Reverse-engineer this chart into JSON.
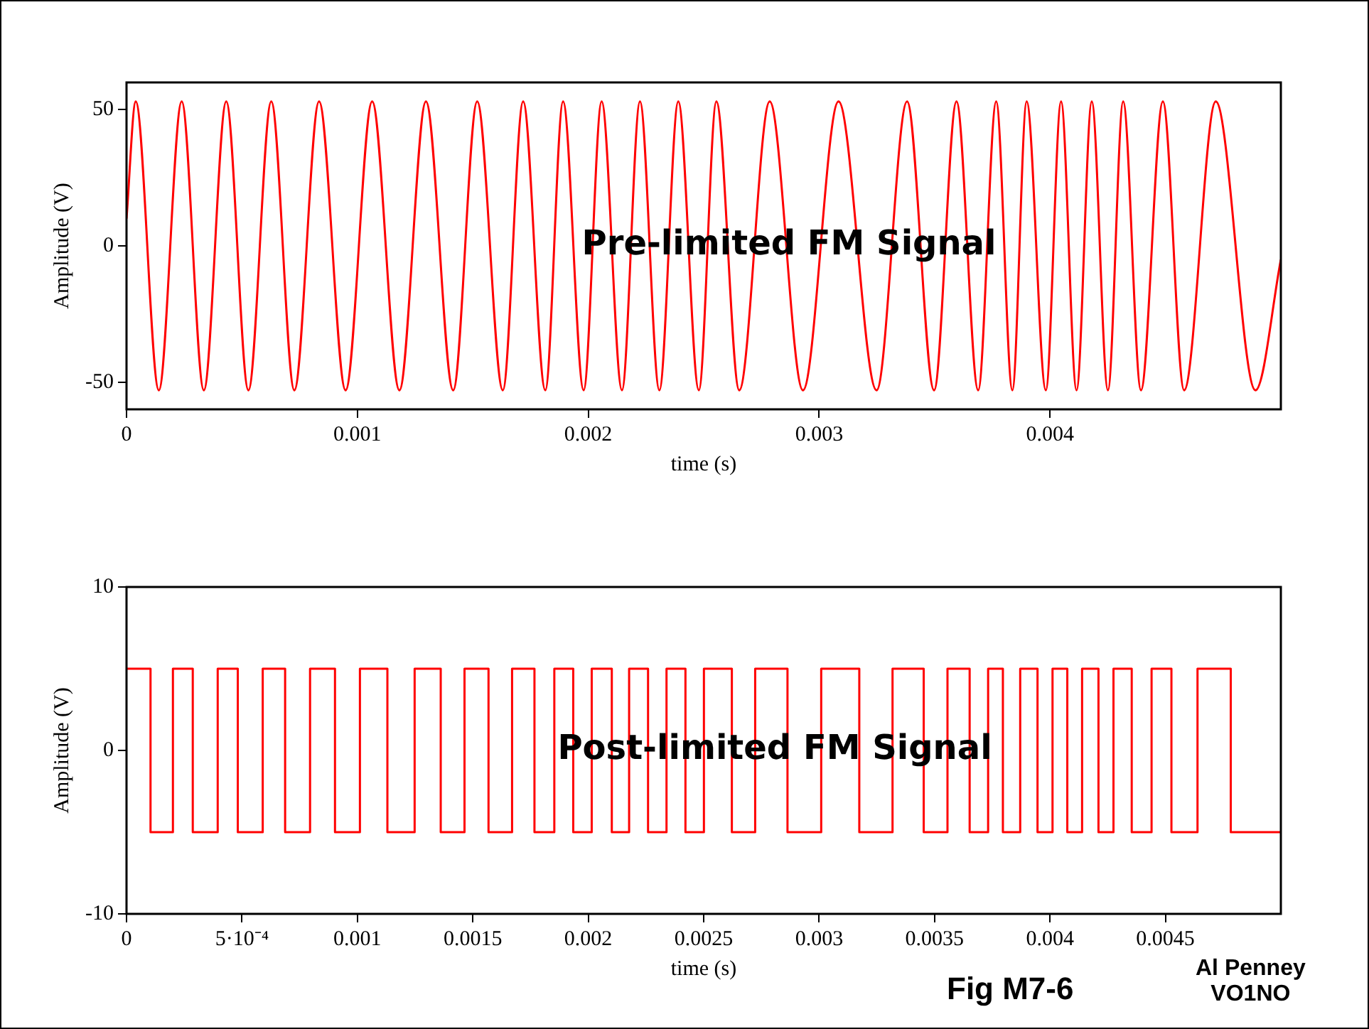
{
  "chart_data": [
    {
      "type": "line",
      "ylabel": "Amplitude (V)",
      "xlabel": "time (s)",
      "marker": "none",
      "grid": false,
      "annotations": [
        "Pre-limited FM Signal"
      ],
      "xlim": [
        0,
        0.005
      ],
      "ylim": [
        -60,
        60
      ],
      "xticks": [
        0,
        0.001,
        0.002,
        0.003,
        0.004
      ],
      "yticks": [
        -50,
        0,
        50
      ],
      "x": [
        0,
        4e-05,
        0.00014,
        0.000239,
        0.000335,
        0.000432,
        0.000528,
        0.000627,
        0.000727,
        0.000834,
        0.000949,
        0.001064,
        0.001182,
        0.001297,
        0.001415,
        0.001519,
        0.00163,
        0.001718,
        0.001814,
        0.001891,
        0.00198,
        0.002058,
        0.002146,
        0.002224,
        0.002308,
        0.00239,
        0.002479,
        0.002555,
        0.002654,
        0.002786,
        0.00293,
        0.003084,
        0.003249,
        0.003381,
        0.003498,
        0.003595,
        0.003689,
        0.003767,
        0.003837,
        0.003899,
        0.003982,
        0.004048,
        0.004115,
        0.004181,
        0.004251,
        0.004317,
        0.004394,
        0.004489,
        0.004581,
        0.004718,
        0.00489,
        0.005
      ],
      "series": [
        {
          "color": "#ff0000",
          "values": [
            10,
            53,
            -53,
            53,
            -53,
            53,
            -53,
            53,
            -53,
            53,
            -53,
            53,
            -53,
            53,
            -53,
            53,
            -53,
            53,
            -53,
            53,
            -53,
            53,
            -53,
            53,
            -53,
            53,
            -53,
            53,
            -53,
            53,
            -53,
            53,
            -53,
            53,
            -53,
            53,
            -53,
            53,
            -53,
            53,
            -53,
            53,
            -53,
            53,
            -53,
            53,
            -53,
            53,
            -53,
            53,
            -53,
            -5
          ]
        }
      ]
    },
    {
      "type": "step",
      "ylabel": "Amplitude (V)",
      "xlabel": "time (s)",
      "marker": "none",
      "grid": false,
      "annotations": [
        "Post-limited FM Signal",
        "Fig M7-6",
        "Al Penney\nVO1NO"
      ],
      "xlim": [
        0,
        0.005
      ],
      "ylim": [
        -10,
        10
      ],
      "xticks": [
        0,
        {
          "value": 0.0005,
          "label": "5·10⁻⁴"
        },
        0.001,
        0.0015,
        0.002,
        0.0025,
        0.003,
        0.0035,
        0.004,
        0.0045
      ],
      "yticks": [
        -10,
        0,
        10
      ],
      "x": [
        0,
        0.000104,
        0.000201,
        0.000287,
        0.000395,
        0.000482,
        0.00059,
        0.000687,
        0.000795,
        0.000903,
        0.001011,
        0.00113,
        0.001248,
        0.001361,
        0.001464,
        0.001568,
        0.00167,
        0.001767,
        0.001853,
        0.001935,
        0.002015,
        0.002102,
        0.002177,
        0.002259,
        0.002339,
        0.002421,
        0.002501,
        0.002622,
        0.002723,
        0.002863,
        0.003009,
        0.003174,
        0.003318,
        0.003453,
        0.003556,
        0.003652,
        0.003732,
        0.003796,
        0.003871,
        0.003946,
        0.004011,
        0.004075,
        0.004139,
        0.00421,
        0.004275,
        0.004354,
        0.00444,
        0.004526,
        0.004639,
        0.004783,
        0.005
      ],
      "series": [
        {
          "color": "#ff0000",
          "values": [
            5,
            -5,
            5,
            -5,
            5,
            -5,
            5,
            -5,
            5,
            -5,
            5,
            -5,
            5,
            -5,
            5,
            -5,
            5,
            -5,
            5,
            -5,
            5,
            -5,
            5,
            -5,
            5,
            -5,
            5,
            -5,
            5,
            -5,
            5,
            -5,
            5,
            -5,
            5,
            -5,
            5,
            -5,
            5,
            -5,
            5,
            -5,
            5,
            -5,
            5,
            -5,
            5,
            -5,
            5,
            -5,
            -5
          ]
        }
      ]
    }
  ]
}
